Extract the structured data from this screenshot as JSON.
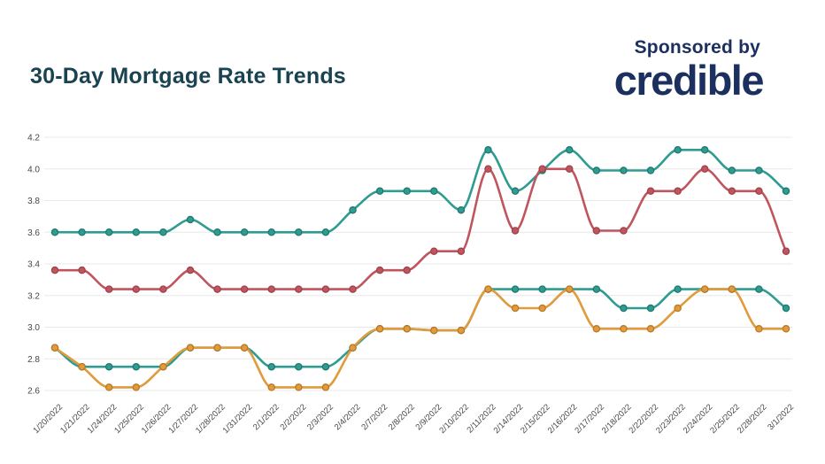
{
  "header": {
    "title": "30-Day Mortgage Rate Trends",
    "title_color": "#1A4351",
    "sponsored_by": "Sponsored by",
    "brand": "credible",
    "brand_color": "#1C3060"
  },
  "chart_data": {
    "type": "line",
    "title": "30-Day Mortgage Rate Trends",
    "xlabel": "",
    "ylabel": "",
    "ylim": [
      2.6,
      4.2
    ],
    "grid": "horizontal",
    "legend": "none",
    "marker": "circle",
    "line_style": "smooth",
    "y_ticks": [
      "4.2",
      "4.0",
      "3.8",
      "3.6",
      "3.4",
      "3.2",
      "3.0",
      "2.8",
      "2.6"
    ],
    "x_labels": [
      "1/20/2022",
      "1/21/2022",
      "1/24/2022",
      "1/25/2022",
      "1/26/2022",
      "1/27/2022",
      "1/28/2022",
      "1/31/2022",
      "2/1/2022",
      "2/2/2022",
      "2/3/2022",
      "2/4/2022",
      "2/7/2022",
      "2/8/2022",
      "2/9/2022",
      "2/10/2022",
      "2/11/2022",
      "2/14/2022",
      "2/15/2022",
      "2/16/2022",
      "2/17/2022",
      "2/18/2022",
      "2/22/2022",
      "2/23/2022",
      "2/24/2022",
      "2/25/2022",
      "2/28/2022",
      "3/1/2022"
    ],
    "series": [
      {
        "name": "teal-upper-line",
        "color": "#2F9C92",
        "point_stroke": "#20786F",
        "values": [
          3.6,
          3.6,
          3.6,
          3.6,
          3.6,
          3.68,
          3.6,
          3.6,
          3.6,
          3.6,
          3.6,
          3.74,
          3.86,
          3.86,
          3.86,
          3.74,
          4.12,
          3.86,
          3.99,
          4.12,
          3.99,
          3.99,
          3.99,
          4.12,
          4.12,
          3.99,
          3.99,
          3.86
        ]
      },
      {
        "name": "red-line",
        "color": "#C0555E",
        "point_stroke": "#9E424D",
        "values": [
          3.36,
          3.36,
          3.24,
          3.24,
          3.24,
          3.36,
          3.24,
          3.24,
          3.24,
          3.24,
          3.24,
          3.24,
          3.36,
          3.36,
          3.48,
          3.48,
          4.0,
          3.61,
          4.0,
          4.0,
          3.61,
          3.61,
          3.86,
          3.86,
          4.0,
          3.86,
          3.86,
          3.48
        ]
      },
      {
        "name": "teal-lower-line",
        "color": "#2F9C92",
        "point_stroke": "#20786F",
        "values": [
          2.87,
          2.75,
          2.75,
          2.75,
          2.75,
          2.87,
          2.87,
          2.87,
          2.75,
          2.75,
          2.75,
          2.87,
          2.99,
          2.99,
          2.98,
          2.98,
          3.24,
          3.24,
          3.24,
          3.24,
          3.24,
          3.12,
          3.12,
          3.24,
          3.24,
          3.24,
          3.24,
          3.12
        ]
      },
      {
        "name": "orange-line",
        "color": "#E19A3C",
        "point_stroke": "#BA7A25",
        "values": [
          2.87,
          2.75,
          2.62,
          2.62,
          2.75,
          2.87,
          2.87,
          2.87,
          2.62,
          2.62,
          2.62,
          2.87,
          2.99,
          2.99,
          2.98,
          2.98,
          3.24,
          3.12,
          3.12,
          3.24,
          2.99,
          2.99,
          2.99,
          3.12,
          3.24,
          3.24,
          2.99,
          2.99
        ]
      }
    ],
    "grid_color": "#E8E8E8",
    "axis_text_color": "#474747"
  }
}
